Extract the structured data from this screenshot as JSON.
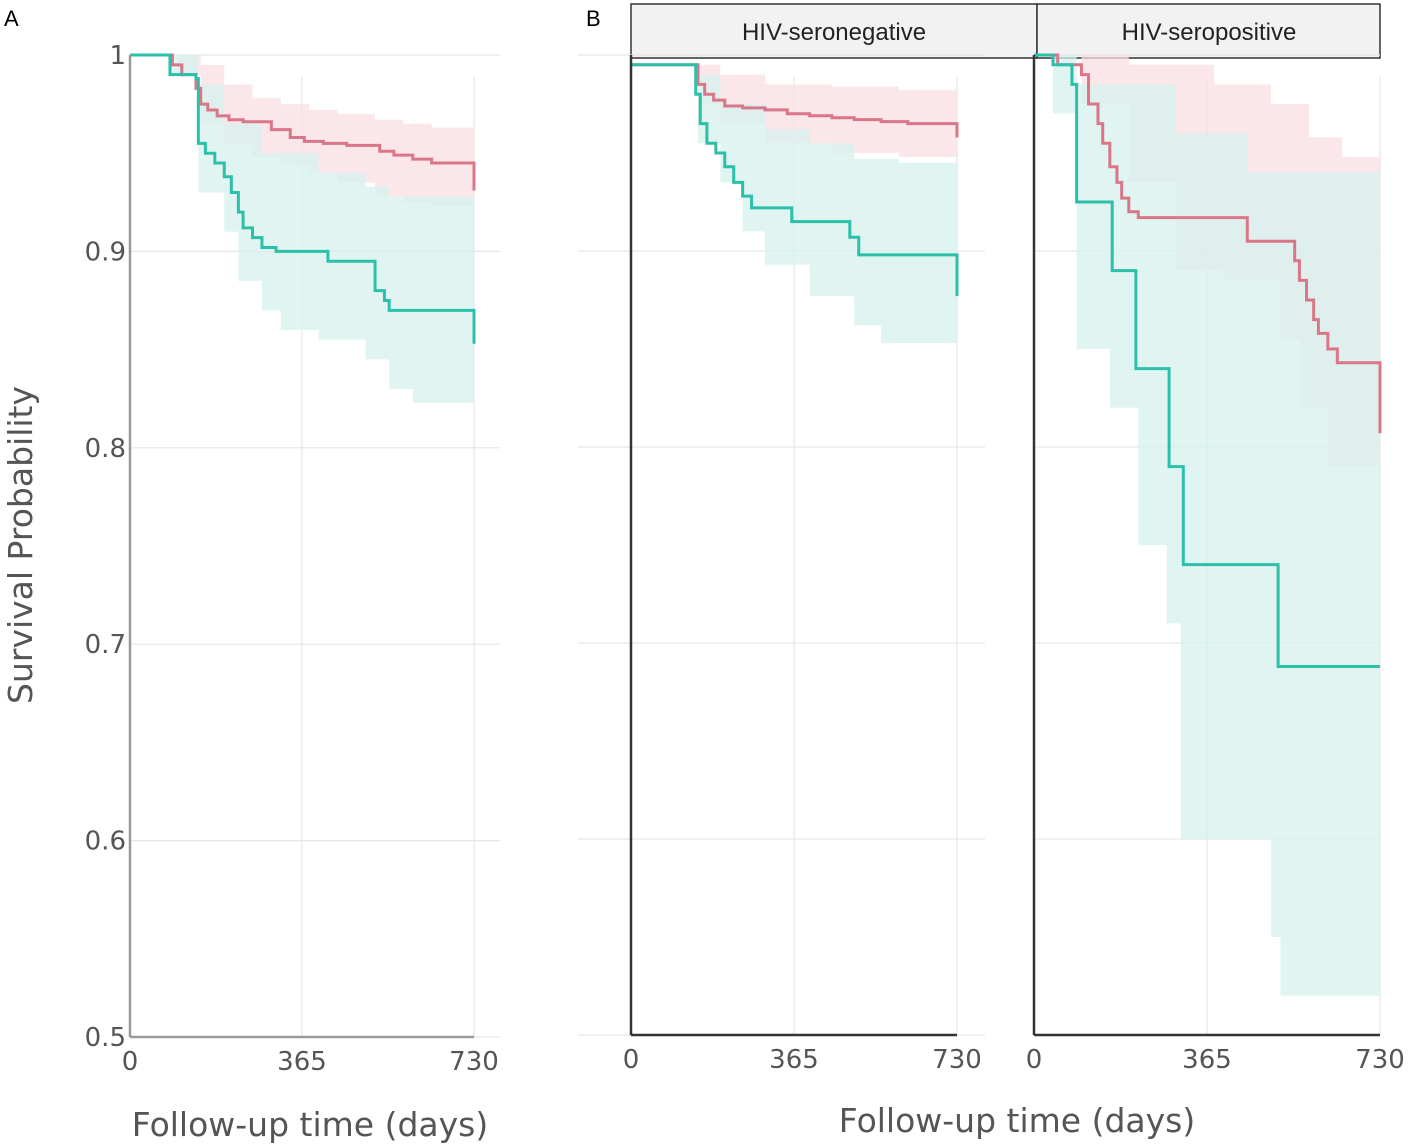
{
  "figure": {
    "panel_a_label": "A",
    "panel_b_label": "B",
    "y_axis_title": "Survival Probability",
    "x_axis_title_a": "Follow-up time (days)",
    "x_axis_title_b": "Follow-up time (days)"
  },
  "colors": {
    "group1_line": "#d97788",
    "group1_band": "#f9dde2",
    "group2_line": "#2cbfa9",
    "group2_band": "#d6f2ed",
    "axis": "#555555",
    "strip_fill": "#f2f2f2"
  },
  "chart_data": [
    {
      "type": "line",
      "panel": "A",
      "title": "",
      "xlabel": "Follow-up time (days)",
      "ylabel": "Survival Probability",
      "xlim": [
        0,
        730
      ],
      "ylim": [
        0.5,
        1.0
      ],
      "x_ticks": [
        0,
        365,
        730
      ],
      "x_tick_labels": [
        "0",
        "365",
        "730"
      ],
      "y_ticks": [
        0.5,
        0.6,
        0.7,
        0.8,
        0.9,
        1.0
      ],
      "y_tick_labels": [
        "0.5",
        "0.6",
        "0.7",
        "0.8",
        "0.9",
        "1"
      ],
      "series": [
        {
          "name": "group1",
          "color": "#d97788",
          "band_color": "#f9dde2",
          "step": [
            [
              0,
              1.0
            ],
            [
              80,
              1.0
            ],
            [
              90,
              0.995
            ],
            [
              110,
              0.99
            ],
            [
              140,
              0.983
            ],
            [
              150,
              0.975
            ],
            [
              165,
              0.972
            ],
            [
              185,
              0.969
            ],
            [
              210,
              0.967
            ],
            [
              240,
              0.966
            ],
            [
              300,
              0.962
            ],
            [
              340,
              0.958
            ],
            [
              370,
              0.956
            ],
            [
              410,
              0.955
            ],
            [
              460,
              0.954
            ],
            [
              530,
              0.951
            ],
            [
              560,
              0.949
            ],
            [
              600,
              0.947
            ],
            [
              640,
              0.945
            ],
            [
              730,
              0.942
            ],
            [
              730,
              0.931
            ]
          ],
          "ci_upper": [
            [
              0,
              1.0
            ],
            [
              100,
              1.0
            ],
            [
              150,
              0.995
            ],
            [
              200,
              0.985
            ],
            [
              260,
              0.978
            ],
            [
              320,
              0.975
            ],
            [
              380,
              0.972
            ],
            [
              440,
              0.97
            ],
            [
              520,
              0.967
            ],
            [
              580,
              0.965
            ],
            [
              640,
              0.963
            ],
            [
              730,
              0.962
            ]
          ],
          "ci_lower": [
            [
              0,
              1.0
            ],
            [
              100,
              0.99
            ],
            [
              150,
              0.965
            ],
            [
              200,
              0.955
            ],
            [
              260,
              0.948
            ],
            [
              320,
              0.944
            ],
            [
              380,
              0.94
            ],
            [
              440,
              0.935
            ],
            [
              520,
              0.928
            ],
            [
              580,
              0.925
            ],
            [
              640,
              0.923
            ],
            [
              730,
              0.923
            ]
          ]
        },
        {
          "name": "group2",
          "color": "#2cbfa9",
          "band_color": "#d6f2ed",
          "step": [
            [
              0,
              1.0
            ],
            [
              75,
              1.0
            ],
            [
              85,
              0.99
            ],
            [
              140,
              0.988
            ],
            [
              145,
              0.955
            ],
            [
              160,
              0.95
            ],
            [
              180,
              0.945
            ],
            [
              200,
              0.938
            ],
            [
              215,
              0.93
            ],
            [
              230,
              0.92
            ],
            [
              240,
              0.912
            ],
            [
              260,
              0.907
            ],
            [
              280,
              0.902
            ],
            [
              310,
              0.9
            ],
            [
              400,
              0.9
            ],
            [
              420,
              0.895
            ],
            [
              500,
              0.895
            ],
            [
              520,
              0.88
            ],
            [
              540,
              0.875
            ],
            [
              550,
              0.87
            ],
            [
              730,
              0.87
            ],
            [
              730,
              0.853
            ]
          ],
          "ci_upper": [
            [
              0,
              1.0
            ],
            [
              80,
              1.0
            ],
            [
              145,
              0.985
            ],
            [
              200,
              0.965
            ],
            [
              280,
              0.95
            ],
            [
              400,
              0.94
            ],
            [
              500,
              0.933
            ],
            [
              550,
              0.928
            ],
            [
              730,
              0.922
            ]
          ],
          "ci_lower": [
            [
              0,
              1.0
            ],
            [
              80,
              0.99
            ],
            [
              145,
              0.93
            ],
            [
              200,
              0.91
            ],
            [
              230,
              0.885
            ],
            [
              280,
              0.87
            ],
            [
              320,
              0.86
            ],
            [
              400,
              0.855
            ],
            [
              500,
              0.845
            ],
            [
              550,
              0.83
            ],
            [
              600,
              0.823
            ],
            [
              730,
              0.823
            ]
          ]
        }
      ]
    },
    {
      "type": "line",
      "panel": "B-HIV-seronegative",
      "title": "HIV-seronegative",
      "xlabel": "Follow-up time (days)",
      "ylabel": "",
      "xlim": [
        0,
        730
      ],
      "ylim": [
        0.5,
        1.0
      ],
      "x_ticks": [
        0,
        365,
        730
      ],
      "x_tick_labels": [
        "0",
        "365",
        "730"
      ],
      "series": [
        {
          "name": "group1",
          "color": "#d97788",
          "band_color": "#f9dde2",
          "step": [
            [
              0,
              0.995
            ],
            [
              140,
              0.995
            ],
            [
              150,
              0.985
            ],
            [
              165,
              0.98
            ],
            [
              185,
              0.977
            ],
            [
              210,
              0.974
            ],
            [
              250,
              0.973
            ],
            [
              300,
              0.972
            ],
            [
              350,
              0.97
            ],
            [
              400,
              0.969
            ],
            [
              450,
              0.968
            ],
            [
              500,
              0.967
            ],
            [
              560,
              0.966
            ],
            [
              620,
              0.965
            ],
            [
              730,
              0.965
            ],
            [
              730,
              0.958
            ]
          ],
          "ci_upper": [
            [
              0,
              0.995
            ],
            [
              150,
              0.995
            ],
            [
              200,
              0.99
            ],
            [
              300,
              0.985
            ],
            [
              450,
              0.984
            ],
            [
              600,
              0.982
            ],
            [
              730,
              0.982
            ]
          ],
          "ci_lower": [
            [
              0,
              0.995
            ],
            [
              150,
              0.975
            ],
            [
              200,
              0.965
            ],
            [
              300,
              0.955
            ],
            [
              450,
              0.95
            ],
            [
              600,
              0.948
            ],
            [
              730,
              0.948
            ]
          ]
        },
        {
          "name": "group2",
          "color": "#2cbfa9",
          "band_color": "#d6f2ed",
          "step": [
            [
              0,
              0.995
            ],
            [
              140,
              0.995
            ],
            [
              145,
              0.98
            ],
            [
              155,
              0.965
            ],
            [
              170,
              0.955
            ],
            [
              190,
              0.95
            ],
            [
              210,
              0.943
            ],
            [
              230,
              0.935
            ],
            [
              250,
              0.928
            ],
            [
              270,
              0.922
            ],
            [
              350,
              0.922
            ],
            [
              360,
              0.915
            ],
            [
              480,
              0.915
            ],
            [
              490,
              0.907
            ],
            [
              510,
              0.898
            ],
            [
              730,
              0.898
            ],
            [
              730,
              0.877
            ]
          ],
          "ci_upper": [
            [
              0,
              0.995
            ],
            [
              150,
              0.99
            ],
            [
              200,
              0.975
            ],
            [
              300,
              0.962
            ],
            [
              400,
              0.955
            ],
            [
              500,
              0.947
            ],
            [
              600,
              0.945
            ],
            [
              730,
              0.945
            ]
          ],
          "ci_lower": [
            [
              0,
              0.995
            ],
            [
              150,
              0.955
            ],
            [
              200,
              0.935
            ],
            [
              250,
              0.91
            ],
            [
              300,
              0.893
            ],
            [
              400,
              0.877
            ],
            [
              500,
              0.862
            ],
            [
              560,
              0.853
            ],
            [
              730,
              0.853
            ]
          ]
        }
      ]
    },
    {
      "type": "line",
      "panel": "B-HIV-seropositive",
      "title": "HIV-seropositive",
      "xlabel": "Follow-up time (days)",
      "ylabel": "",
      "xlim": [
        0,
        730
      ],
      "ylim": [
        0.5,
        1.0
      ],
      "x_ticks": [
        0,
        365,
        730
      ],
      "x_tick_labels": [
        "0",
        "365",
        "730"
      ],
      "series": [
        {
          "name": "group1",
          "color": "#d97788",
          "band_color": "#f9dde2",
          "step": [
            [
              0,
              1.0
            ],
            [
              40,
              1.0
            ],
            [
              50,
              0.995
            ],
            [
              100,
              0.99
            ],
            [
              115,
              0.975
            ],
            [
              135,
              0.965
            ],
            [
              145,
              0.955
            ],
            [
              160,
              0.943
            ],
            [
              175,
              0.935
            ],
            [
              185,
              0.927
            ],
            [
              200,
              0.92
            ],
            [
              220,
              0.917
            ],
            [
              360,
              0.917
            ],
            [
              440,
              0.917
            ],
            [
              450,
              0.905
            ],
            [
              540,
              0.905
            ],
            [
              550,
              0.895
            ],
            [
              560,
              0.885
            ],
            [
              575,
              0.875
            ],
            [
              590,
              0.865
            ],
            [
              600,
              0.858
            ],
            [
              620,
              0.85
            ],
            [
              640,
              0.843
            ],
            [
              730,
              0.843
            ],
            [
              730,
              0.807
            ]
          ],
          "ci_upper": [
            [
              0,
              1.0
            ],
            [
              200,
              0.995
            ],
            [
              380,
              0.985
            ],
            [
              500,
              0.975
            ],
            [
              580,
              0.958
            ],
            [
              650,
              0.948
            ],
            [
              730,
              0.948
            ]
          ],
          "ci_lower": [
            [
              0,
              1.0
            ],
            [
              100,
              0.975
            ],
            [
              200,
              0.935
            ],
            [
              300,
              0.89
            ],
            [
              400,
              0.885
            ],
            [
              520,
              0.855
            ],
            [
              560,
              0.82
            ],
            [
              620,
              0.79
            ],
            [
              730,
              0.765
            ]
          ]
        },
        {
          "name": "group2",
          "color": "#2cbfa9",
          "band_color": "#d6f2ed",
          "step": [
            [
              0,
              1.0
            ],
            [
              25,
              1.0
            ],
            [
              40,
              0.995
            ],
            [
              80,
              0.985
            ],
            [
              90,
              0.925
            ],
            [
              160,
              0.925
            ],
            [
              165,
              0.89
            ],
            [
              210,
              0.89
            ],
            [
              215,
              0.84
            ],
            [
              280,
              0.84
            ],
            [
              285,
              0.79
            ],
            [
              310,
              0.79
            ],
            [
              315,
              0.74
            ],
            [
              510,
              0.74
            ],
            [
              515,
              0.688
            ],
            [
              730,
              0.688
            ]
          ],
          "ci_upper": [
            [
              0,
              1.0
            ],
            [
              40,
              1.0
            ],
            [
              90,
              0.985
            ],
            [
              300,
              0.96
            ],
            [
              450,
              0.94
            ],
            [
              730,
              0.92
            ]
          ],
          "ci_lower": [
            [
              0,
              1.0
            ],
            [
              40,
              0.97
            ],
            [
              90,
              0.85
            ],
            [
              160,
              0.82
            ],
            [
              220,
              0.75
            ],
            [
              280,
              0.71
            ],
            [
              310,
              0.6
            ],
            [
              500,
              0.55
            ],
            [
              520,
              0.52
            ],
            [
              730,
              0.518
            ]
          ]
        }
      ]
    }
  ]
}
